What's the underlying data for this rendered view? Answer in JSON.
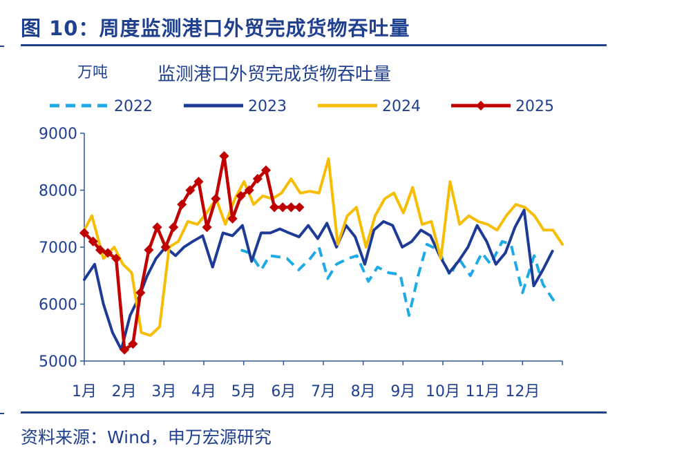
{
  "figure": {
    "title": "图 10：周度监测港口外贸完成货物吞吐量",
    "source": "资料来源：Wind，申万宏源研究"
  },
  "colors": {
    "text": "#1f3f8f",
    "axis": "#2f5597",
    "s2022": "#1eaae6",
    "s2023": "#1c3a96",
    "s2024": "#f7bd00",
    "s2025": "#c00000"
  },
  "chart_data": {
    "type": "line",
    "title": "监测港口外贸完成货物吞吐量",
    "ylabel": "万吨",
    "xlabel": "",
    "ylim": [
      5000,
      9000
    ],
    "yticks": [
      5000,
      6000,
      7000,
      8000,
      9000
    ],
    "x_range": [
      1,
      13
    ],
    "x_ticks": [
      {
        "label": "1月",
        "x": 1
      },
      {
        "label": "2月",
        "x": 2
      },
      {
        "label": "3月",
        "x": 3
      },
      {
        "label": "4月",
        "x": 4
      },
      {
        "label": "5月",
        "x": 5
      },
      {
        "label": "6月",
        "x": 6
      },
      {
        "label": "7月",
        "x": 7
      },
      {
        "label": "8月",
        "x": 8
      },
      {
        "label": "9月",
        "x": 9
      },
      {
        "label": "10月",
        "x": 10
      },
      {
        "label": "11月",
        "x": 11
      },
      {
        "label": "12月",
        "x": 12
      }
    ],
    "grid": false,
    "legend_position": "top",
    "series": [
      {
        "name": "2022",
        "style": "dashed",
        "x": [
          4.93,
          5.15,
          5.44,
          5.65,
          5.87,
          6.09,
          6.38,
          6.67,
          6.89,
          7.11,
          7.33,
          7.62,
          7.84,
          8.13,
          8.36,
          8.64,
          8.93,
          9.15,
          9.38,
          9.6,
          9.89,
          10.18,
          10.4,
          10.69,
          10.98,
          11.2,
          11.49,
          11.71,
          12.0,
          12.29,
          12.51,
          12.84
        ],
        "y": [
          6950,
          6900,
          6600,
          6850,
          6830,
          6800,
          6600,
          6800,
          7000,
          6450,
          6700,
          6800,
          6850,
          6400,
          6650,
          6550,
          6520,
          5800,
          6500,
          7050,
          6950,
          6500,
          6800,
          6500,
          6900,
          6700,
          7100,
          7050,
          6200,
          6850,
          6350,
          6000
        ]
      },
      {
        "name": "2023",
        "style": "solid",
        "x": [
          1.0,
          1.26,
          1.48,
          1.71,
          1.93,
          2.15,
          2.36,
          2.58,
          2.8,
          3.04,
          3.29,
          3.5,
          3.72,
          3.97,
          4.22,
          4.48,
          4.72,
          4.97,
          5.2,
          5.44,
          5.67,
          5.91,
          6.14,
          6.39,
          6.62,
          6.86,
          7.09,
          7.33,
          7.57,
          7.8,
          8.04,
          8.27,
          8.51,
          8.74,
          8.98,
          9.22,
          9.45,
          9.69,
          9.92,
          10.16,
          10.39,
          10.63,
          10.86,
          11.1,
          11.33,
          11.57,
          11.81,
          12.04,
          12.28,
          12.51,
          12.75
        ],
        "y": [
          6430,
          6700,
          6000,
          5500,
          5200,
          5800,
          6100,
          6500,
          6800,
          7000,
          6850,
          7000,
          7100,
          7200,
          6650,
          7250,
          7200,
          7380,
          6750,
          7250,
          7250,
          7320,
          7250,
          7180,
          7380,
          7150,
          7420,
          7000,
          7380,
          7180,
          6700,
          7300,
          7450,
          7380,
          7000,
          7100,
          7300,
          7200,
          6850,
          6550,
          6750,
          7000,
          7380,
          7100,
          6700,
          6900,
          7350,
          7650,
          6320,
          6600,
          6930
        ]
      },
      {
        "name": "2024",
        "style": "solid",
        "x": [
          1.0,
          1.19,
          1.48,
          1.75,
          1.97,
          2.19,
          2.43,
          2.66,
          2.89,
          3.13,
          3.36,
          3.6,
          3.84,
          4.07,
          4.31,
          4.54,
          4.78,
          5.01,
          5.25,
          5.48,
          5.72,
          5.95,
          6.19,
          6.42,
          6.66,
          6.89,
          7.13,
          7.36,
          7.6,
          7.83,
          8.07,
          8.3,
          8.54,
          8.77,
          9.01,
          9.24,
          9.48,
          9.71,
          9.95,
          10.18,
          10.42,
          10.65,
          10.89,
          11.12,
          11.36,
          11.59,
          11.83,
          12.06,
          12.3,
          12.53,
          12.76,
          13.0
        ],
        "y": [
          7300,
          7550,
          6800,
          7000,
          6700,
          6550,
          5500,
          5450,
          5600,
          7000,
          7100,
          7450,
          7400,
          7600,
          7850,
          7400,
          7850,
          8150,
          7750,
          7900,
          7850,
          7950,
          8200,
          7950,
          7980,
          7950,
          8550,
          7050,
          7550,
          7700,
          7000,
          7550,
          7850,
          7950,
          7600,
          8050,
          7400,
          7450,
          6800,
          8150,
          7400,
          7550,
          7450,
          7400,
          7300,
          7550,
          7750,
          7700,
          7550,
          7300,
          7300,
          7050
        ]
      },
      {
        "name": "2025",
        "style": "solid-marker",
        "x": [
          1.0,
          1.22,
          1.4,
          1.59,
          1.8,
          2.01,
          2.22,
          2.41,
          2.62,
          2.83,
          3.04,
          3.24,
          3.45,
          3.66,
          3.87,
          4.08,
          4.3,
          4.51,
          4.72,
          4.93,
          5.14,
          5.35,
          5.56,
          5.77,
          5.98,
          6.19,
          6.4
        ],
        "y": [
          7250,
          7100,
          6950,
          6900,
          6800,
          5200,
          5300,
          6200,
          6950,
          7350,
          7000,
          7350,
          7750,
          8000,
          8150,
          7350,
          7850,
          8600,
          7500,
          7900,
          8000,
          8200,
          8350,
          7700,
          7700,
          7700,
          7700
        ]
      }
    ]
  }
}
